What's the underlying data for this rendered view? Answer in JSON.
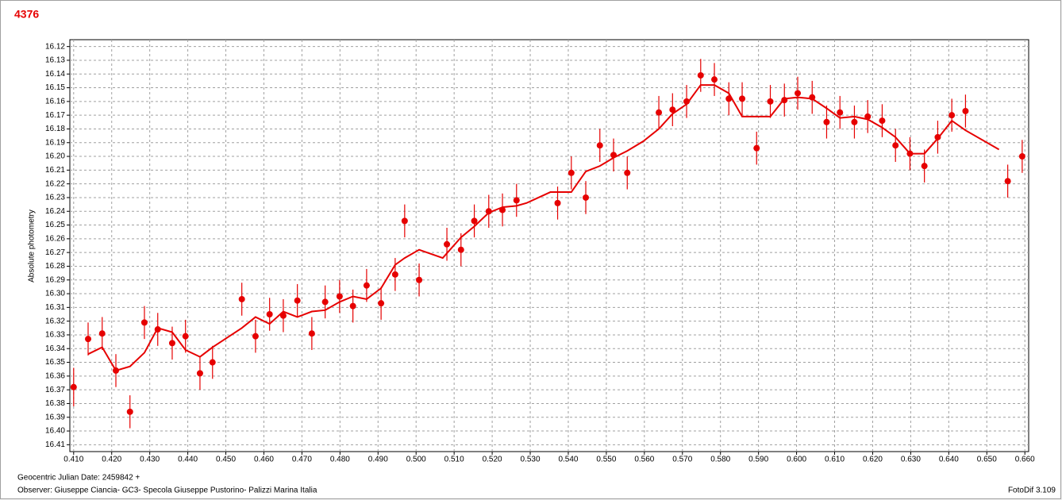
{
  "chart_data": {
    "type": "scatter",
    "title": "4376",
    "ylabel": "Absolute photometry",
    "xlabel": "Geocentric Julian Date: 2459842 +",
    "footnote": "Observer: Giuseppe Ciancia- GC3- Specola Giuseppe Pustorino- Palizzi Marina Italia",
    "software": "FotoDif 3.109",
    "y_inverted": true,
    "grid": true,
    "xlim": [
      0.409,
      0.661
    ],
    "ylim": [
      16.115,
      16.415
    ],
    "xticks": [
      {
        "value": 0.41,
        "label": "0.410"
      },
      {
        "value": 0.42,
        "label": "0.420"
      },
      {
        "value": 0.43,
        "label": "0.430"
      },
      {
        "value": 0.44,
        "label": "0.440"
      },
      {
        "value": 0.45,
        "label": "0.450"
      },
      {
        "value": 0.46,
        "label": "0.460"
      },
      {
        "value": 0.47,
        "label": "0.470"
      },
      {
        "value": 0.48,
        "label": "0.480"
      },
      {
        "value": 0.49,
        "label": "0.490"
      },
      {
        "value": 0.5,
        "label": "0.500"
      },
      {
        "value": 0.51,
        "label": "0.510"
      },
      {
        "value": 0.52,
        "label": "0.520"
      },
      {
        "value": 0.53,
        "label": "0.530"
      },
      {
        "value": 0.54,
        "label": "0.540"
      },
      {
        "value": 0.55,
        "label": "0.550"
      },
      {
        "value": 0.56,
        "label": "0.560"
      },
      {
        "value": 0.57,
        "label": "0.570"
      },
      {
        "value": 0.58,
        "label": "0.580"
      },
      {
        "value": 0.59,
        "label": "0.590"
      },
      {
        "value": 0.6,
        "label": "0.600"
      },
      {
        "value": 0.61,
        "label": "0.610"
      },
      {
        "value": 0.62,
        "label": "0.620"
      },
      {
        "value": 0.63,
        "label": "0.630"
      },
      {
        "value": 0.64,
        "label": "0.640"
      },
      {
        "value": 0.65,
        "label": "0.650"
      },
      {
        "value": 0.66,
        "label": "0.660"
      }
    ],
    "yticks": [
      16.12,
      16.13,
      16.14,
      16.15,
      16.16,
      16.17,
      16.18,
      16.19,
      {
        "value": 16.2,
        "label": "16.20"
      },
      16.21,
      16.22,
      16.23,
      16.24,
      16.25,
      16.26,
      16.27,
      16.28,
      16.29,
      {
        "value": 16.3,
        "label": "16.30"
      },
      16.31,
      16.32,
      16.33,
      16.34,
      16.35,
      16.36,
      16.37,
      16.38,
      16.39,
      {
        "value": 16.4,
        "label": "16.40"
      },
      16.41
    ],
    "series": [
      {
        "mode": "points",
        "color": "#e60000",
        "x": [
          0.41,
          0.4138,
          0.4175,
          0.4211,
          0.4248,
          0.4286,
          0.4321,
          0.4359,
          0.4394,
          0.4432,
          0.4465,
          0.4542,
          0.4578,
          0.4615,
          0.4651,
          0.4688,
          0.4726,
          0.4761,
          0.4799,
          0.4834,
          0.487,
          0.4908,
          0.4945,
          0.497,
          0.5008,
          0.5081,
          0.5118,
          0.5153,
          0.5191,
          0.5227,
          0.5264,
          0.5372,
          0.5408,
          0.5446,
          0.5483,
          0.5519,
          0.5555,
          0.5638,
          0.5674,
          0.5711,
          0.5748,
          0.5784,
          0.5822,
          0.5857,
          0.5895,
          0.5931,
          0.5968,
          0.6003,
          0.6041,
          0.6079,
          0.6114,
          0.6152,
          0.6187,
          0.6225,
          0.626,
          0.6298,
          0.6336,
          0.6371,
          0.6408,
          0.6444,
          0.6555,
          0.6593
        ],
        "values": [
          16.368,
          16.333,
          16.329,
          16.356,
          16.386,
          16.321,
          16.326,
          16.336,
          16.331,
          16.358,
          16.35,
          16.304,
          16.331,
          16.315,
          16.316,
          16.305,
          16.329,
          16.306,
          16.302,
          16.309,
          16.294,
          16.307,
          16.286,
          16.247,
          16.29,
          16.264,
          16.268,
          16.247,
          16.24,
          16.239,
          16.232,
          16.234,
          16.212,
          16.23,
          16.192,
          16.199,
          16.212,
          16.168,
          16.166,
          16.16,
          16.141,
          16.144,
          16.158,
          16.158,
          16.194,
          16.16,
          16.159,
          16.154,
          16.157,
          16.175,
          16.168,
          16.175,
          16.171,
          16.174,
          16.192,
          16.198,
          16.207,
          16.186,
          16.17,
          16.167,
          16.218,
          16.2
        ],
        "errors": [
          0.014,
          0.012,
          0.012,
          0.012,
          0.012,
          0.012,
          0.012,
          0.012,
          0.012,
          0.012,
          0.012,
          0.012,
          0.012,
          0.012,
          0.012,
          0.012,
          0.012,
          0.012,
          0.012,
          0.012,
          0.012,
          0.012,
          0.012,
          0.012,
          0.012,
          0.012,
          0.012,
          0.012,
          0.012,
          0.012,
          0.012,
          0.012,
          0.012,
          0.012,
          0.012,
          0.012,
          0.012,
          0.012,
          0.012,
          0.012,
          0.012,
          0.012,
          0.012,
          0.012,
          0.012,
          0.012,
          0.012,
          0.012,
          0.012,
          0.012,
          0.012,
          0.012,
          0.012,
          0.012,
          0.012,
          0.012,
          0.012,
          0.012,
          0.012,
          0.012,
          0.012,
          0.012
        ]
      },
      {
        "mode": "line",
        "color": "#e60000",
        "x": [
          0.4138,
          0.4175,
          0.4211,
          0.4248,
          0.4286,
          0.4321,
          0.4359,
          0.4394,
          0.4432,
          0.4465,
          0.4542,
          0.4578,
          0.4615,
          0.4651,
          0.4688,
          0.4726,
          0.4761,
          0.4799,
          0.4834,
          0.487,
          0.4908,
          0.4945,
          0.497,
          0.5008,
          0.507,
          0.5118,
          0.5153,
          0.5191,
          0.5227,
          0.5264,
          0.529,
          0.5353,
          0.5408,
          0.5446,
          0.5483,
          0.5519,
          0.5555,
          0.5597,
          0.5638,
          0.5674,
          0.5711,
          0.5748,
          0.5784,
          0.5822,
          0.5857,
          0.5895,
          0.5931,
          0.5968,
          0.6003,
          0.6041,
          0.6079,
          0.6114,
          0.6152,
          0.6187,
          0.6225,
          0.626,
          0.6298,
          0.6336,
          0.6371,
          0.6408,
          0.6444,
          0.6532
        ],
        "values": [
          16.344,
          16.339,
          16.356,
          16.353,
          16.343,
          16.325,
          16.328,
          16.341,
          16.346,
          16.339,
          16.325,
          16.317,
          16.322,
          16.313,
          16.317,
          16.313,
          16.312,
          16.306,
          16.302,
          16.304,
          16.296,
          16.279,
          16.274,
          16.268,
          16.274,
          16.259,
          16.251,
          16.241,
          16.237,
          16.236,
          16.234,
          16.226,
          16.226,
          16.211,
          16.207,
          16.201,
          16.196,
          16.189,
          16.18,
          16.169,
          16.162,
          16.148,
          16.148,
          16.154,
          16.171,
          16.171,
          16.171,
          16.158,
          16.157,
          16.158,
          16.165,
          16.172,
          16.171,
          16.173,
          16.179,
          16.186,
          16.198,
          16.198,
          16.187,
          16.174,
          16.181,
          16.195
        ]
      }
    ]
  }
}
